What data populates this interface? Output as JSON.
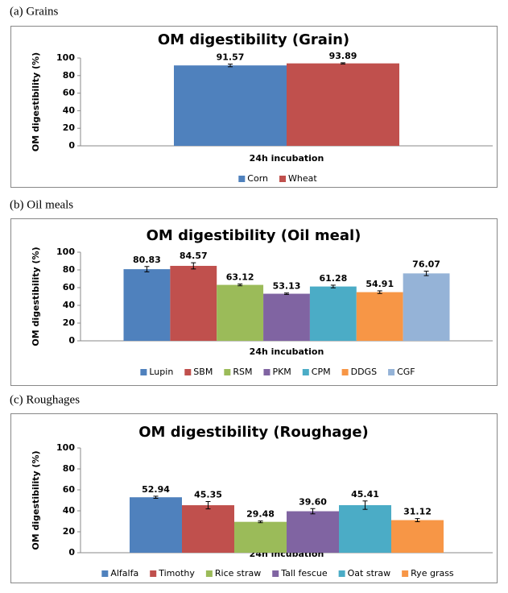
{
  "chart_data": [
    {
      "type": "bar",
      "panel_label": "(a)  Grains",
      "title": "OM digestibility  (Grain)",
      "ylabel": "OM digestibility (%)",
      "categories": [
        "24h incubation"
      ],
      "ylim": [
        0,
        100
      ],
      "yticks": [
        0,
        20,
        40,
        60,
        80,
        100
      ],
      "series": [
        {
          "name": "Corn",
          "color": "#4f81bd",
          "values": [
            91.57
          ],
          "errors": [
            1.5
          ]
        },
        {
          "name": "Wheat",
          "color": "#c0504d",
          "values": [
            93.89
          ],
          "errors": [
            0.7
          ]
        }
      ]
    },
    {
      "type": "bar",
      "panel_label": "(b)  Oil  meals",
      "title": "OM digestibility  (Oil meal)",
      "ylabel": "OM digestibility (%)",
      "categories": [
        "24h incubation"
      ],
      "ylim": [
        0,
        100
      ],
      "yticks": [
        0,
        20,
        40,
        60,
        80,
        100
      ],
      "series": [
        {
          "name": "Lupin",
          "color": "#4f81bd",
          "values": [
            80.83
          ],
          "errors": [
            3
          ]
        },
        {
          "name": "SBM",
          "color": "#c0504d",
          "values": [
            84.57
          ],
          "errors": [
            3.5
          ]
        },
        {
          "name": "RSM",
          "color": "#9bbb59",
          "values": [
            63.12
          ],
          "errors": [
            1
          ]
        },
        {
          "name": "PKM",
          "color": "#8064a2",
          "values": [
            53.13
          ],
          "errors": [
            0.8
          ]
        },
        {
          "name": "CPM",
          "color": "#4bacc6",
          "values": [
            61.28
          ],
          "errors": [
            1.5
          ]
        },
        {
          "name": "DDGS",
          "color": "#f79646",
          "values": [
            54.91
          ],
          "errors": [
            1.5
          ]
        },
        {
          "name": "CGF",
          "color": "#95b3d7",
          "values": [
            76.07
          ],
          "errors": [
            2.5
          ]
        }
      ]
    },
    {
      "type": "bar",
      "panel_label": "(c)  Roughages",
      "title": "OM digestibility  (Roughage)",
      "ylabel": "OM digestibility (%)",
      "categories": [
        "24h incubation"
      ],
      "ylim": [
        0,
        100
      ],
      "yticks": [
        0,
        20,
        40,
        60,
        80,
        100
      ],
      "series": [
        {
          "name": "Alfalfa",
          "color": "#4f81bd",
          "values": [
            52.94
          ],
          "errors": [
            1
          ]
        },
        {
          "name": "Timothy",
          "color": "#c0504d",
          "values": [
            45.35
          ],
          "errors": [
            3.5
          ]
        },
        {
          "name": "Rice straw",
          "color": "#9bbb59",
          "values": [
            29.48
          ],
          "errors": [
            0.8
          ]
        },
        {
          "name": "Tall fescue",
          "color": "#8064a2",
          "values": [
            39.6
          ],
          "value_labels": [
            "39.60"
          ],
          "errors": [
            2.5
          ]
        },
        {
          "name": "Oat straw",
          "color": "#4bacc6",
          "values": [
            45.41
          ],
          "errors": [
            4
          ]
        },
        {
          "name": "Rye grass",
          "color": "#f79646",
          "values": [
            31.12
          ],
          "errors": [
            1.5
          ]
        }
      ]
    }
  ]
}
